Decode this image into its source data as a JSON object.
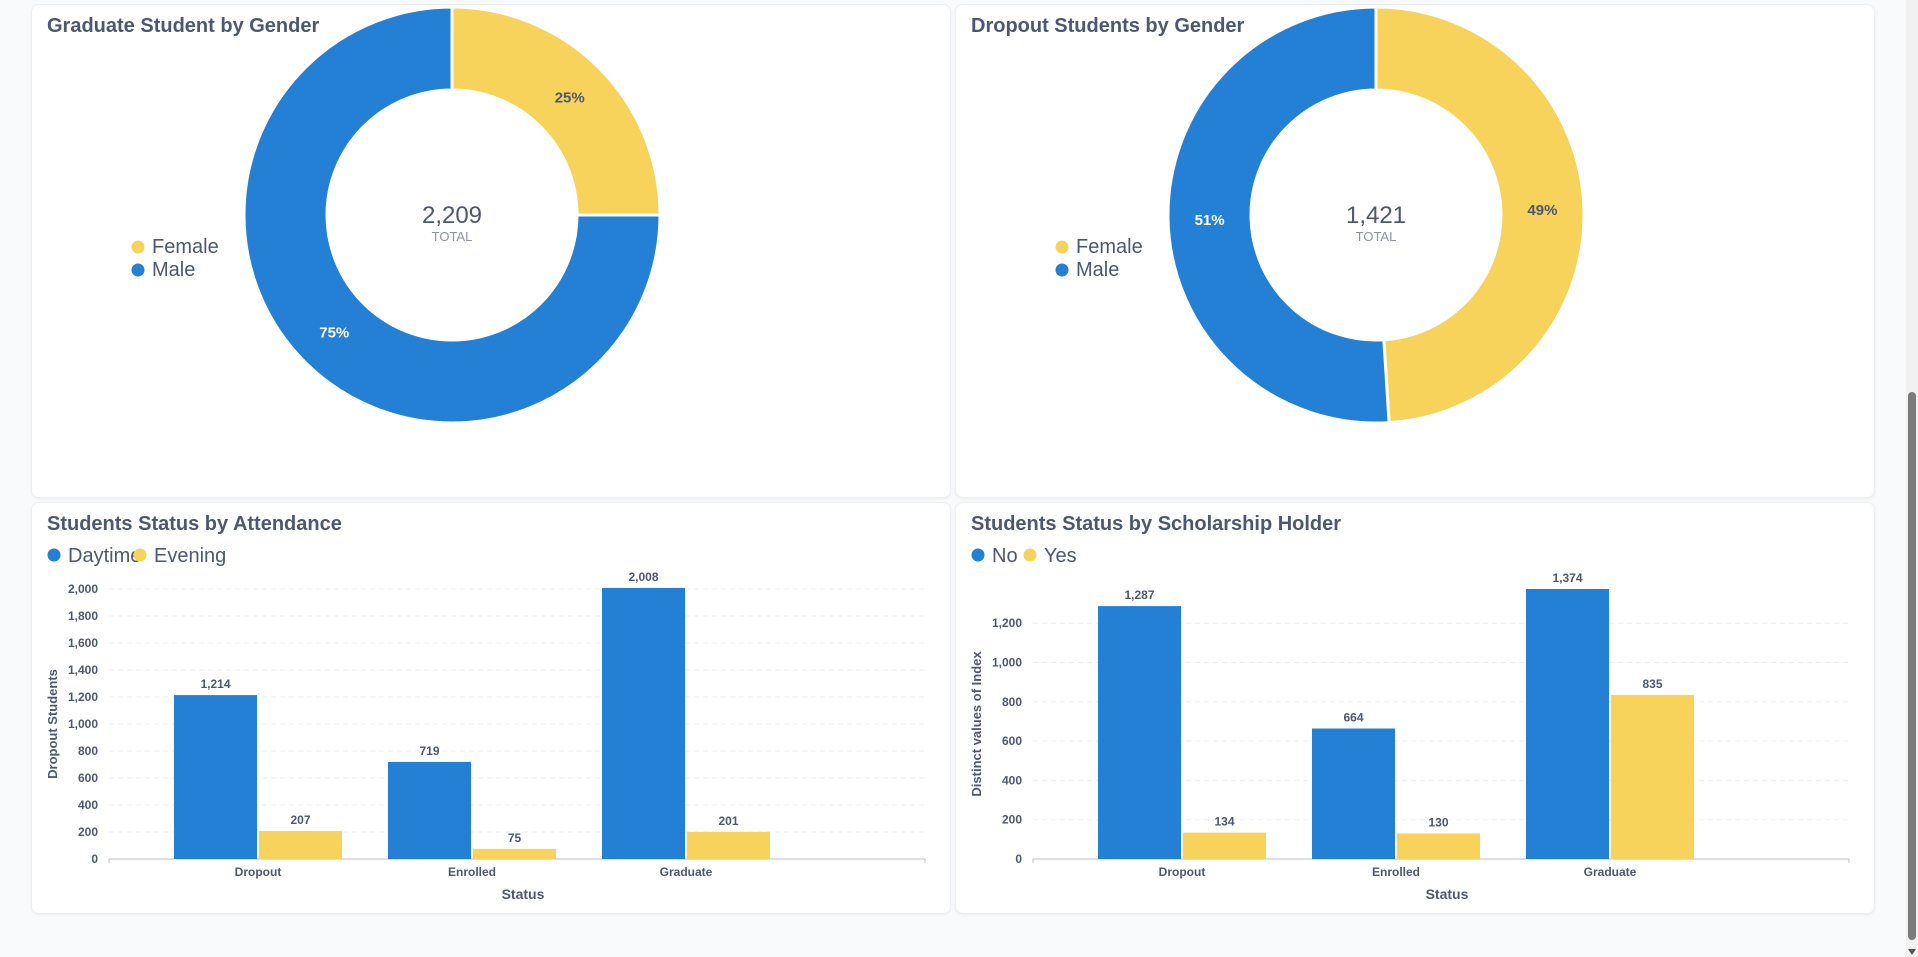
{
  "colors": {
    "blue": "#2380d5",
    "yellow": "#f7d35c",
    "text": "#4c5773",
    "muted": "#8b94a5"
  },
  "charts": {
    "grad": {
      "title": "Graduate Student by Gender",
      "total_value": "2,209",
      "total_label": "TOTAL",
      "legend": [
        "Female",
        "Male"
      ]
    },
    "drop": {
      "title": "Dropout Students by Gender",
      "total_value": "1,421",
      "total_label": "TOTAL",
      "legend": [
        "Female",
        "Male"
      ]
    },
    "att": {
      "title": "Students Status by Attendance",
      "legend": [
        "Daytime",
        "Evening"
      ]
    },
    "sch": {
      "title": "Students Status by Scholarship Holder",
      "legend": [
        "No",
        "Yes"
      ]
    }
  },
  "chart_data": [
    {
      "type": "pie",
      "title": "Graduate Student by Gender",
      "donut": true,
      "total": 2209,
      "labels": [
        "Female",
        "Male"
      ],
      "values": [
        25,
        75
      ],
      "value_labels": [
        "25%",
        "75%"
      ],
      "colors": [
        "#f7d35c",
        "#2380d5"
      ],
      "legend_position": "left"
    },
    {
      "type": "pie",
      "title": "Dropout Students by Gender",
      "donut": true,
      "total": 1421,
      "labels": [
        "Female",
        "Male"
      ],
      "values": [
        49,
        51
      ],
      "value_labels": [
        "49%",
        "51%"
      ],
      "colors": [
        "#f7d35c",
        "#2380d5"
      ],
      "legend_position": "left"
    },
    {
      "type": "bar",
      "title": "Students Status by Attendance",
      "categories": [
        "Dropout",
        "Enrolled",
        "Graduate"
      ],
      "series": [
        {
          "name": "Daytime",
          "values": [
            1214,
            719,
            2008
          ],
          "color": "#2380d5"
        },
        {
          "name": "Evening",
          "values": [
            207,
            75,
            201
          ],
          "color": "#f7d35c"
        }
      ],
      "xlabel": "Status",
      "ylabel": "Dropout Students",
      "ylim": [
        0,
        2000
      ],
      "yticks": [
        0,
        200,
        400,
        600,
        800,
        1000,
        1200,
        1400,
        1600,
        1800,
        2000
      ],
      "ytick_labels": [
        "0",
        "200",
        "400",
        "600",
        "800",
        "1,000",
        "1,200",
        "1,400",
        "1,600",
        "1,800",
        "2,000"
      ],
      "value_labels": [
        [
          "1,214",
          "719",
          "2,008"
        ],
        [
          "207",
          "75",
          "201"
        ]
      ],
      "grid": true,
      "legend_position": "top-left"
    },
    {
      "type": "bar",
      "title": "Students Status by Scholarship Holder",
      "categories": [
        "Dropout",
        "Enrolled",
        "Graduate"
      ],
      "series": [
        {
          "name": "No",
          "values": [
            1287,
            664,
            1374
          ],
          "color": "#2380d5"
        },
        {
          "name": "Yes",
          "values": [
            134,
            130,
            835
          ],
          "color": "#f7d35c"
        }
      ],
      "xlabel": "Status",
      "ylabel": "Distinct values of Index",
      "ylim": [
        0,
        1374
      ],
      "yticks": [
        0,
        200,
        400,
        600,
        800,
        1000,
        1200
      ],
      "ytick_labels": [
        "0",
        "200",
        "400",
        "600",
        "800",
        "1,000",
        "1,200"
      ],
      "value_labels": [
        [
          "1,287",
          "664",
          "1,374"
        ],
        [
          "134",
          "130",
          "835"
        ]
      ],
      "grid": true,
      "legend_position": "top-left"
    }
  ]
}
